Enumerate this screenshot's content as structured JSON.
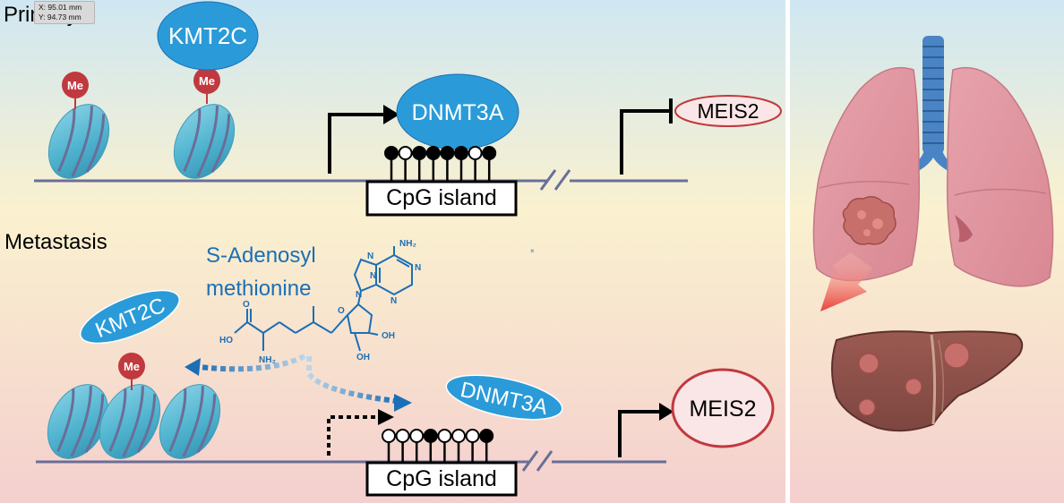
{
  "panels": {
    "primary": {
      "heading": "Primary",
      "writer_label": "KMT2C",
      "methyl_mark": "Me",
      "enzyme_label": "DNMT3A",
      "cpg_label": "CpG island",
      "gene_label": "MEIS2",
      "cpg_pattern": [
        "filled",
        "open",
        "filled",
        "filled",
        "filled",
        "filled",
        "open",
        "filled"
      ]
    },
    "metastasis": {
      "heading": "Metastasis",
      "writer_label": "KMT2C",
      "methyl_mark": "Me",
      "enzyme_label": "DNMT3A",
      "cpg_label": "CpG island",
      "gene_label": "MEIS2",
      "cpg_pattern": [
        "open",
        "open",
        "open",
        "filled",
        "open",
        "open",
        "open",
        "filled"
      ],
      "metabolite_name_line1": "S-Adenosyl",
      "metabolite_name_line2": "methionine",
      "molecule_labels": {
        "nh2_top": "NH₂",
        "n1": "N",
        "n2": "N",
        "n3": "N",
        "n4": "N",
        "n5": "N",
        "o_ring": "O",
        "o_acid": "O",
        "ho_acid": "HO",
        "nh2_chain": "NH₂",
        "oh1": "OH",
        "oh2": "OH"
      }
    }
  },
  "coordinate_readout": {
    "x": "X: 95.01 mm",
    "y": "Y: 94.73 mm"
  },
  "colors": {
    "nucleosome": "#4fb3cf",
    "dna_line": "#6a6e98",
    "methyl": "#c0393f",
    "enzyme": "#2a9bd8",
    "molecule": "#1b6fb6",
    "gene_active_fill": "#fbe6e7",
    "gene_border": "#c0393f",
    "tumor_arrow": "#e8413b"
  }
}
